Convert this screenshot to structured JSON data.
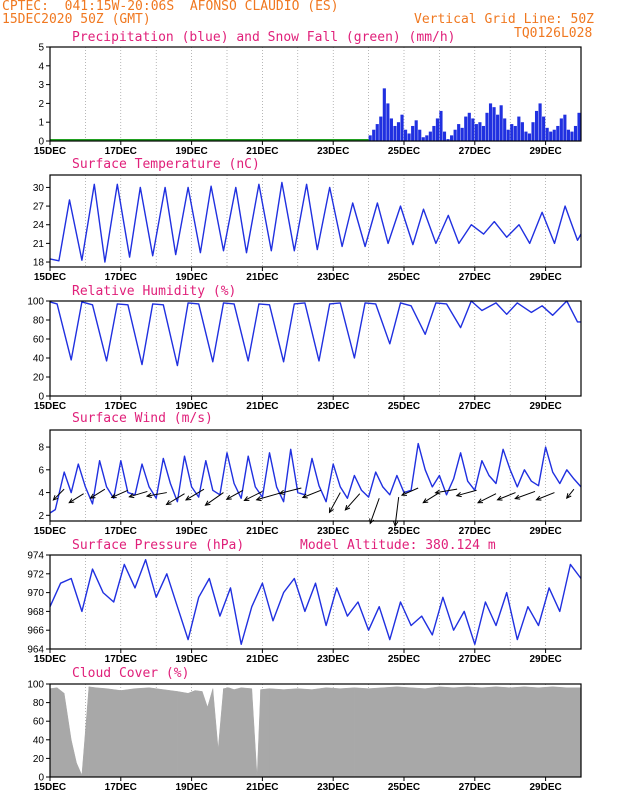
{
  "header": {
    "line1": "CPTEC:  041:15W-20:06S  AFONSO CLAUDIO (ES)",
    "line2": "15DEC2020 50Z (GMT)",
    "grid_note": "Vertical Grid Line: 50Z",
    "code": "TQ0126L028"
  },
  "colors": {
    "header": "#f07820",
    "title": "#e0207a",
    "line": "#2030e0",
    "gray": "#a8a8a8",
    "grid": "#888888"
  },
  "chart_data": [
    {
      "id": "precip",
      "type": "bar",
      "title": "Precipitation (blue) and Snow Fall (green) (mm/h)",
      "ylim": [
        0,
        5
      ],
      "yticks": [
        "0",
        "1",
        "2",
        "3",
        "4",
        "5"
      ],
      "x_start_day": 15,
      "x_end_day": 30,
      "xticks": [
        "15DEC",
        "17DEC",
        "19DEC",
        "21DEC",
        "23DEC",
        "25DEC",
        "27DEC",
        "29DEC"
      ],
      "series": [
        {
          "x": [
            24.0,
            24.1,
            24.2,
            24.3,
            24.4,
            24.5,
            24.6,
            24.7,
            24.8,
            24.9,
            25.0,
            25.1,
            25.2,
            25.3,
            25.4,
            25.5,
            25.6,
            25.7,
            25.8,
            25.9,
            26.0,
            26.1,
            26.2,
            26.3,
            26.4,
            26.5,
            26.6,
            26.7,
            26.8,
            26.9,
            27.0,
            27.1,
            27.2,
            27.3,
            27.4,
            27.5,
            27.6,
            27.7,
            27.8,
            27.9,
            28.0,
            28.1,
            28.2,
            28.3,
            28.4,
            28.5,
            28.6,
            28.7,
            28.8,
            28.9,
            29.0,
            29.1,
            29.2,
            29.3,
            29.4,
            29.5,
            29.6,
            29.7,
            29.8,
            29.9
          ],
          "values": [
            0.3,
            0.6,
            0.9,
            1.3,
            2.8,
            2.0,
            1.2,
            0.8,
            1.0,
            1.4,
            0.6,
            0.4,
            0.8,
            1.1,
            0.6,
            0.2,
            0.3,
            0.5,
            0.8,
            1.2,
            1.6,
            0.5,
            0.1,
            0.3,
            0.6,
            0.9,
            0.7,
            1.3,
            1.5,
            1.2,
            0.9,
            1.0,
            0.8,
            1.5,
            2.0,
            1.8,
            1.4,
            1.9,
            1.2,
            0.6,
            0.9,
            0.8,
            1.3,
            1.0,
            0.5,
            0.4,
            1.0,
            1.6,
            2.0,
            1.3,
            0.7,
            0.5,
            0.6,
            0.8,
            1.2,
            1.4,
            0.6,
            0.5,
            0.8,
            1.5
          ]
        }
      ]
    },
    {
      "id": "temp",
      "type": "line",
      "title": "Surface Temperature (nC)",
      "ylim": [
        17.2,
        32
      ],
      "yticks": [
        "18",
        "21",
        "24",
        "27",
        "30"
      ],
      "x_start_day": 15,
      "x_end_day": 30,
      "xticks": [
        "15DEC",
        "17DEC",
        "19DEC",
        "21DEC",
        "23DEC",
        "25DEC",
        "27DEC",
        "29DEC"
      ],
      "series": [
        {
          "x": [
            15.0,
            15.25,
            15.55,
            15.9,
            16.25,
            16.55,
            16.9,
            17.25,
            17.55,
            17.9,
            18.25,
            18.55,
            18.9,
            19.25,
            19.55,
            19.9,
            20.25,
            20.55,
            20.9,
            21.25,
            21.55,
            21.9,
            22.25,
            22.55,
            22.9,
            23.25,
            23.55,
            23.9,
            24.25,
            24.55,
            24.9,
            25.25,
            25.55,
            25.9,
            26.25,
            26.55,
            26.9,
            27.25,
            27.55,
            27.9,
            28.25,
            28.55,
            28.9,
            29.25,
            29.55,
            29.9,
            30.0
          ],
          "values": [
            18.5,
            18.2,
            28.0,
            18.3,
            30.5,
            18.0,
            30.5,
            18.8,
            30.0,
            19.0,
            30.0,
            19.2,
            30.0,
            19.5,
            30.2,
            19.8,
            30.0,
            19.5,
            30.5,
            19.8,
            30.8,
            19.8,
            30.5,
            20.0,
            30.0,
            20.5,
            27.5,
            20.5,
            27.5,
            21.0,
            27.0,
            20.8,
            26.5,
            21.0,
            25.5,
            21.0,
            24.0,
            22.5,
            24.5,
            22.0,
            24.0,
            21.0,
            26.0,
            21.0,
            27.0,
            21.5,
            22.5
          ]
        }
      ]
    },
    {
      "id": "rh",
      "type": "line",
      "title": "Relative Humidity (%)",
      "ylim": [
        0,
        100
      ],
      "yticks": [
        "0",
        "20",
        "40",
        "60",
        "80",
        "100"
      ],
      "x_start_day": 15,
      "x_end_day": 30,
      "xticks": [
        "15DEC",
        "17DEC",
        "19DEC",
        "21DEC",
        "23DEC",
        "25DEC",
        "27DEC",
        "29DEC"
      ],
      "series": [
        {
          "x": [
            15.0,
            15.2,
            15.6,
            15.9,
            16.2,
            16.6,
            16.9,
            17.2,
            17.6,
            17.9,
            18.2,
            18.6,
            18.9,
            19.2,
            19.6,
            19.9,
            20.2,
            20.6,
            20.9,
            21.2,
            21.6,
            21.9,
            22.2,
            22.6,
            22.9,
            23.2,
            23.6,
            23.9,
            24.2,
            24.6,
            24.9,
            25.2,
            25.6,
            25.9,
            26.2,
            26.6,
            26.9,
            27.2,
            27.6,
            27.9,
            28.2,
            28.6,
            28.9,
            29.2,
            29.6,
            29.9,
            30.0
          ],
          "values": [
            99,
            97,
            38,
            99,
            96,
            37,
            97,
            96,
            33,
            97,
            96,
            32,
            98,
            97,
            36,
            98,
            97,
            37,
            97,
            96,
            36,
            97,
            98,
            37,
            97,
            98,
            40,
            98,
            97,
            55,
            98,
            95,
            65,
            98,
            97,
            72,
            100,
            90,
            98,
            86,
            98,
            88,
            95,
            85,
            100,
            78,
            78
          ]
        }
      ]
    },
    {
      "id": "wind",
      "type": "line",
      "title": "Surface Wind (m/s)",
      "ylim": [
        1.5,
        9.5
      ],
      "yticks": [
        "2",
        "4",
        "6",
        "8"
      ],
      "x_start_day": 15,
      "x_end_day": 30,
      "xticks": [
        "15DEC",
        "17DEC",
        "19DEC",
        "21DEC",
        "23DEC",
        "25DEC",
        "27DEC",
        "29DEC"
      ],
      "series": [
        {
          "x": [
            15.0,
            15.15,
            15.4,
            15.6,
            15.8,
            16.0,
            16.2,
            16.4,
            16.6,
            16.8,
            17.0,
            17.2,
            17.4,
            17.6,
            17.8,
            18.0,
            18.2,
            18.4,
            18.6,
            18.8,
            19.0,
            19.2,
            19.4,
            19.6,
            19.8,
            20.0,
            20.2,
            20.4,
            20.6,
            20.8,
            21.0,
            21.2,
            21.4,
            21.6,
            21.8,
            22.0,
            22.2,
            22.4,
            22.6,
            22.8,
            23.0,
            23.2,
            23.4,
            23.6,
            23.8,
            24.0,
            24.2,
            24.4,
            24.6,
            24.8,
            25.0,
            25.2,
            25.4,
            25.6,
            25.8,
            26.0,
            26.2,
            26.4,
            26.6,
            26.8,
            27.0,
            27.2,
            27.4,
            27.6,
            27.8,
            28.0,
            28.2,
            28.4,
            28.6,
            28.8,
            29.0,
            29.2,
            29.4,
            29.6,
            29.8,
            30.0
          ],
          "values": [
            2.2,
            2.5,
            5.8,
            4.0,
            6.5,
            4.5,
            3.0,
            6.8,
            4.5,
            3.5,
            6.8,
            4.0,
            3.8,
            6.5,
            4.5,
            3.5,
            7.0,
            4.8,
            3.2,
            7.2,
            4.5,
            3.6,
            6.8,
            4.2,
            3.8,
            7.5,
            4.8,
            3.5,
            7.2,
            4.5,
            3.6,
            7.5,
            4.5,
            3.2,
            7.8,
            4.0,
            3.8,
            7.0,
            4.6,
            3.2,
            6.5,
            4.5,
            3.5,
            5.5,
            4.2,
            3.6,
            5.8,
            4.5,
            3.8,
            5.5,
            4.0,
            4.2,
            8.3,
            6.0,
            4.5,
            5.5,
            3.8,
            5.2,
            7.5,
            5.0,
            4.2,
            6.8,
            5.5,
            4.8,
            7.8,
            6.0,
            4.5,
            6.0,
            5.0,
            4.6,
            8.0,
            5.8,
            4.8,
            6.0,
            5.2,
            4.5
          ]
        }
      ],
      "barbs": {
        "x": [
          15.4,
          15.95,
          16.55,
          17.2,
          17.75,
          18.3,
          18.8,
          19.35,
          19.9,
          20.45,
          21.0,
          21.55,
          22.1,
          22.65,
          23.2,
          23.75,
          24.3,
          24.85,
          25.4,
          25.95,
          26.5,
          27.05,
          27.6,
          28.15,
          28.7,
          29.25,
          29.8
        ],
        "y": [
          4.3,
          3.9,
          4.3,
          4.2,
          4.1,
          4.0,
          3.9,
          4.3,
          4.0,
          4.2,
          4.1,
          4.0,
          4.4,
          4.2,
          4.0,
          3.9,
          3.5,
          3.6,
          4.4,
          3.9,
          4.3,
          4.2,
          3.9,
          4.0,
          4.1,
          4.0,
          4.3
        ],
        "u": [
          -0.6,
          -0.8,
          -0.8,
          -0.9,
          -1.0,
          -1.1,
          -1.0,
          -1.0,
          -1.0,
          -0.9,
          -1.0,
          -1.4,
          -1.2,
          -1.0,
          -0.6,
          -0.8,
          -0.5,
          -0.2,
          -0.9,
          -0.8,
          -1.2,
          -1.1,
          -1.0,
          -1.0,
          -1.1,
          -1.0,
          -0.4
        ],
        "v": [
          -0.6,
          -0.5,
          -0.5,
          -0.4,
          -0.3,
          -0.2,
          -0.6,
          -0.6,
          -0.7,
          -0.5,
          -0.5,
          -0.4,
          -0.3,
          -0.4,
          -1.1,
          -0.9,
          -1.4,
          -1.6,
          -0.4,
          -0.5,
          -0.2,
          -0.3,
          -0.5,
          -0.4,
          -0.4,
          -0.4,
          -0.5
        ]
      }
    },
    {
      "id": "pres",
      "type": "line",
      "title": "Surface Pressure (hPa)",
      "subtitle": "Model Altitude: 380.124 m",
      "ylim": [
        964,
        974
      ],
      "yticks": [
        "964",
        "966",
        "968",
        "970",
        "972",
        "974"
      ],
      "x_start_day": 15,
      "x_end_day": 30,
      "xticks": [
        "15DEC",
        "17DEC",
        "19DEC",
        "21DEC",
        "23DEC",
        "25DEC",
        "27DEC",
        "29DEC"
      ],
      "series": [
        {
          "x": [
            15.0,
            15.3,
            15.6,
            15.9,
            16.2,
            16.5,
            16.8,
            17.1,
            17.4,
            17.7,
            18.0,
            18.3,
            18.6,
            18.9,
            19.2,
            19.5,
            19.8,
            20.1,
            20.4,
            20.7,
            21.0,
            21.3,
            21.6,
            21.9,
            22.2,
            22.5,
            22.8,
            23.1,
            23.4,
            23.7,
            24.0,
            24.3,
            24.6,
            24.9,
            25.2,
            25.5,
            25.8,
            26.1,
            26.4,
            26.7,
            27.0,
            27.3,
            27.6,
            27.9,
            28.2,
            28.5,
            28.8,
            29.1,
            29.4,
            29.7,
            30.0
          ],
          "values": [
            968.5,
            971.0,
            971.5,
            968.0,
            972.5,
            970.0,
            969.0,
            973.0,
            970.5,
            973.5,
            969.5,
            972.0,
            968.5,
            965.0,
            969.5,
            971.5,
            967.5,
            970.5,
            964.5,
            968.5,
            971.0,
            967.0,
            970.0,
            971.5,
            968.0,
            971.0,
            966.5,
            970.5,
            967.5,
            969.0,
            966.0,
            968.5,
            965.0,
            969.0,
            966.5,
            967.5,
            965.5,
            969.5,
            966.0,
            968.0,
            964.5,
            969.0,
            966.5,
            970.0,
            965.0,
            968.5,
            966.5,
            970.5,
            968.0,
            973.0,
            971.5
          ]
        }
      ]
    },
    {
      "id": "cloud",
      "type": "area",
      "title": "Cloud Cover (%)",
      "ylim": [
        0,
        100
      ],
      "yticks": [
        "0",
        "20",
        "40",
        "60",
        "80",
        "100"
      ],
      "x_start_day": 15,
      "x_end_day": 30,
      "xticks": [
        "15DEC",
        "17DEC",
        "19DEC",
        "21DEC",
        "23DEC",
        "25DEC",
        "27DEC",
        "29DEC"
      ],
      "series": [
        {
          "x": [
            15.0,
            15.2,
            15.4,
            15.6,
            15.75,
            15.9,
            16.1,
            16.3,
            16.6,
            17.0,
            17.4,
            17.8,
            18.2,
            18.6,
            18.9,
            19.1,
            19.3,
            19.45,
            19.6,
            19.75,
            19.9,
            20.05,
            20.2,
            20.4,
            20.7,
            20.85,
            20.95,
            21.2,
            21.6,
            22.0,
            22.4,
            22.8,
            23.2,
            23.6,
            24.0,
            24.4,
            24.8,
            25.2,
            25.6,
            26.0,
            26.4,
            26.8,
            27.2,
            27.6,
            28.0,
            28.4,
            28.8,
            29.2,
            29.6,
            30.0
          ],
          "values": [
            95,
            96,
            90,
            40,
            15,
            2,
            97,
            96,
            95,
            93,
            95,
            96,
            94,
            92,
            90,
            93,
            92,
            75,
            95,
            30,
            95,
            96,
            94,
            96,
            95,
            0,
            94,
            95,
            94,
            95,
            94,
            96,
            95,
            96,
            95,
            96,
            97,
            96,
            95,
            97,
            96,
            97,
            96,
            97,
            96,
            97,
            96,
            97,
            96,
            96
          ]
        }
      ]
    }
  ]
}
